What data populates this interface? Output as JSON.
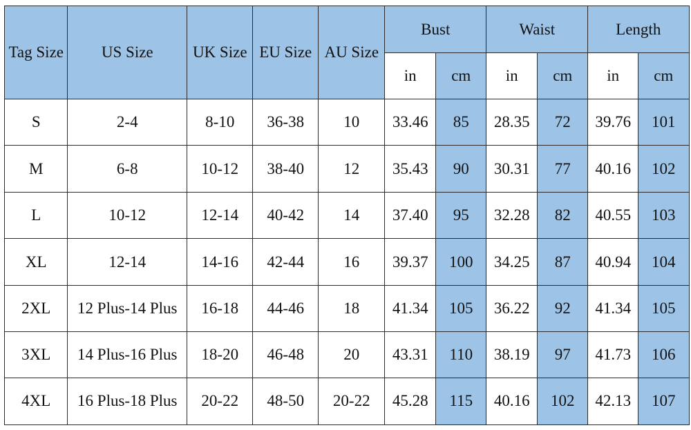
{
  "table": {
    "columns": [
      "Tag Size",
      "US Size",
      "UK Size",
      "EU Size",
      "AU Size"
    ],
    "groups": [
      "Bust",
      "Waist",
      "Length"
    ],
    "units": [
      "in",
      "cm",
      "in",
      "cm",
      "in",
      "cm"
    ],
    "rows": [
      [
        "S",
        "2-4",
        "8-10",
        "36-38",
        "10",
        "33.46",
        "85",
        "28.35",
        "72",
        "39.76",
        "101"
      ],
      [
        "M",
        "6-8",
        "10-12",
        "38-40",
        "12",
        "35.43",
        "90",
        "30.31",
        "77",
        "40.16",
        "102"
      ],
      [
        "L",
        "10-12",
        "12-14",
        "40-42",
        "14",
        "37.40",
        "95",
        "32.28",
        "82",
        "40.55",
        "103"
      ],
      [
        "XL",
        "12-14",
        "14-16",
        "42-44",
        "16",
        "39.37",
        "100",
        "34.25",
        "87",
        "40.94",
        "104"
      ],
      [
        "2XL",
        "12 Plus-14 Plus",
        "16-18",
        "44-46",
        "18",
        "41.34",
        "105",
        "36.22",
        "92",
        "41.34",
        "105"
      ],
      [
        "3XL",
        "14 Plus-16 Plus",
        "18-20",
        "46-48",
        "20",
        "43.31",
        "110",
        "38.19",
        "97",
        "41.73",
        "106"
      ],
      [
        "4XL",
        "16 Plus-18 Plus",
        "20-22",
        "48-50",
        "20-22",
        "45.28",
        "115",
        "40.16",
        "102",
        "42.13",
        "107"
      ]
    ]
  }
}
